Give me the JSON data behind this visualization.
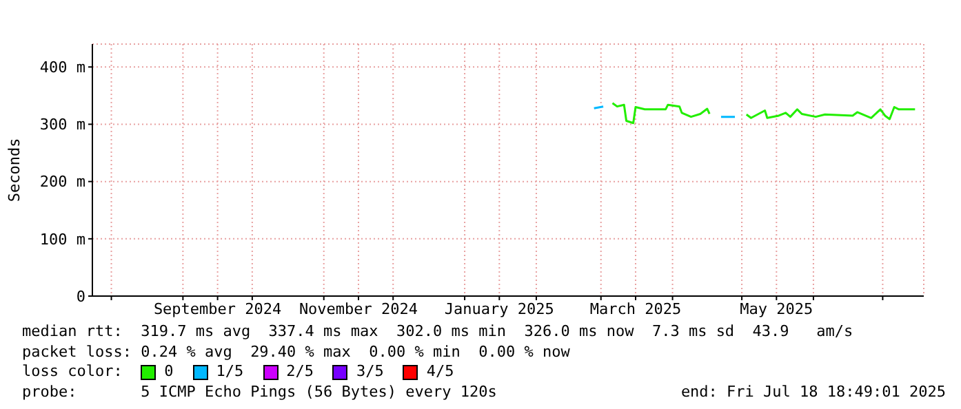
{
  "chart_data": {
    "type": "line",
    "ylabel": "Seconds",
    "legend_title": "loss color:",
    "legend": "bottom",
    "grid": true,
    "marker": "none",
    "line_style": "solid",
    "x": [
      "2025-02-26",
      "2025-03-02",
      "2025-03-06",
      "2025-03-08",
      "2025-03-11",
      "2025-03-12",
      "2025-03-15",
      "2025-03-16",
      "2025-03-20",
      "2025-03-29",
      "2025-03-30",
      "2025-04-04",
      "2025-04-05",
      "2025-04-09",
      "2025-04-13",
      "2025-04-16",
      "2025-04-17",
      "2025-04-22",
      "2025-04-28",
      "2025-05-03",
      "2025-05-05",
      "2025-05-11",
      "2025-05-12",
      "2025-05-17",
      "2025-05-20",
      "2025-05-22",
      "2025-05-25",
      "2025-05-27",
      "2025-06-02",
      "2025-06-06",
      "2025-06-18",
      "2025-06-20",
      "2025-06-26",
      "2025-06-30",
      "2025-07-02",
      "2025-07-04",
      "2025-07-06",
      "2025-07-08",
      "2025-07-15"
    ],
    "xlim": [
      "2024-07-23T18:49",
      "2025-07-18T18:49"
    ],
    "xticks": [
      {
        "value": "2024-08-01",
        "label": null
      },
      {
        "value": "2024-09-01",
        "label": null
      },
      {
        "value": "2024-09-16",
        "label": "September 2024"
      },
      {
        "value": "2024-10-01",
        "label": null
      },
      {
        "value": "2024-11-01",
        "label": null
      },
      {
        "value": "2024-11-16",
        "label": "November 2024"
      },
      {
        "value": "2024-12-01",
        "label": null
      },
      {
        "value": "2025-01-01",
        "label": null
      },
      {
        "value": "2025-01-16",
        "label": "January 2025"
      },
      {
        "value": "2025-02-01",
        "label": null
      },
      {
        "value": "2025-03-01",
        "label": null
      },
      {
        "value": "2025-03-16",
        "label": "March 2025"
      },
      {
        "value": "2025-04-01",
        "label": null
      },
      {
        "value": "2025-05-01",
        "label": null
      },
      {
        "value": "2025-05-16",
        "label": "May 2025"
      },
      {
        "value": "2025-06-01",
        "label": null
      },
      {
        "value": "2025-07-01",
        "label": null
      }
    ],
    "ylim": [
      0,
      440
    ],
    "yticks": [
      0,
      {
        "value": 100,
        "label": "100 m"
      },
      {
        "value": 200,
        "label": "200 m"
      },
      {
        "value": 300,
        "label": "300 m"
      },
      {
        "value": 400,
        "label": "400 m"
      }
    ],
    "series": [
      {
        "name": "0",
        "color": "#22ee00",
        "values": [
          null,
          null,
          337,
          331,
          334,
          306,
          302,
          330,
          326,
          326,
          334,
          331,
          320,
          313,
          318,
          327,
          318,
          null,
          null,
          317,
          311,
          324,
          311,
          315,
          320,
          313,
          326,
          318,
          313,
          317,
          315,
          321,
          311,
          326,
          315,
          309,
          330,
          326,
          326
        ]
      },
      {
        "name": "1/5",
        "color": "#00b8ff",
        "values": [
          328,
          331,
          null,
          null,
          null,
          null,
          null,
          null,
          null,
          null,
          null,
          null,
          null,
          null,
          null,
          null,
          null,
          313,
          313,
          null,
          null,
          null,
          null,
          null,
          null,
          null,
          null,
          null,
          null,
          null,
          null,
          null,
          null,
          null,
          null,
          null,
          null,
          null,
          null
        ]
      },
      {
        "name": "2/5",
        "color": "#cc00ff",
        "values": [
          null,
          null,
          null,
          null,
          null,
          null,
          null,
          null,
          null,
          null,
          null,
          null,
          null,
          null,
          null,
          null,
          null,
          null,
          null,
          null,
          null,
          null,
          null,
          null,
          null,
          null,
          null,
          null,
          null,
          null,
          null,
          null,
          null,
          null,
          null,
          null,
          null,
          null,
          null
        ]
      },
      {
        "name": "3/5",
        "color": "#7700ff",
        "values": [
          null,
          null,
          null,
          null,
          null,
          null,
          null,
          null,
          null,
          null,
          null,
          null,
          null,
          null,
          null,
          null,
          null,
          null,
          null,
          null,
          null,
          null,
          null,
          null,
          null,
          null,
          null,
          null,
          null,
          null,
          null,
          null,
          null,
          null,
          null,
          null,
          null,
          null,
          null
        ]
      },
      {
        "name": "4/5",
        "color": "#ff0000",
        "values": [
          null,
          null,
          null,
          null,
          null,
          null,
          null,
          null,
          null,
          null,
          null,
          null,
          null,
          null,
          null,
          null,
          null,
          null,
          null,
          null,
          null,
          null,
          null,
          null,
          null,
          null,
          null,
          null,
          null,
          null,
          null,
          null,
          null,
          null,
          null,
          null,
          null,
          null,
          null
        ]
      }
    ],
    "annotations": [
      "median rtt:  319.7 ms avg  337.4 ms max  302.0 ms min  326.0 ms now  7.3 ms sd  43.9   am/s",
      "packet loss: 0.24 % avg  29.40 % max  0.00 % min  0.00 % now",
      "probe:       5 ICMP Echo Pings (56 Bytes) every 120s",
      "end: Fri Jul 18 18:49:01 2025"
    ]
  }
}
